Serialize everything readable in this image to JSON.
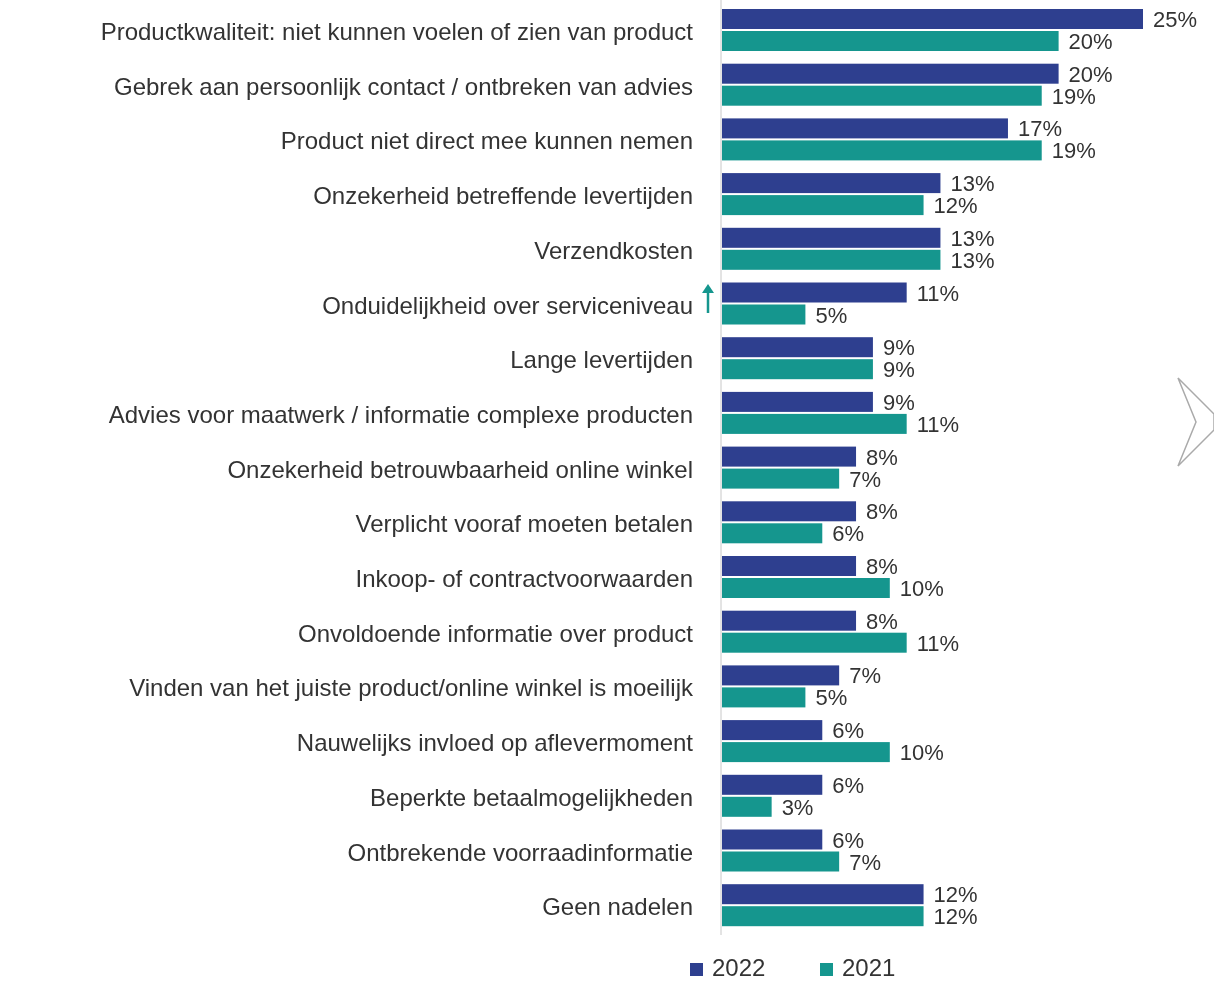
{
  "chart_data": {
    "type": "bar",
    "orientation": "horizontal",
    "legend": "bottom",
    "categories": [
      "Productkwaliteit: niet kunnen voelen of zien van product",
      "Gebrek aan persoonlijk contact / ontbreken van advies",
      "Product niet direct mee kunnen nemen",
      "Onzekerheid betreffende levertijden",
      "Verzendkosten",
      "Onduidelijkheid over serviceniveau",
      "Lange levertijden",
      "Advies voor maatwerk / informatie complexe producten",
      "Onzekerheid betrouwbaarheid online winkel",
      "Verplicht vooraf moeten betalen",
      "Inkoop- of contractvoorwaarden",
      "Onvoldoende informatie over product",
      "Vinden van het juiste product/online winkel is moeilijk",
      "Nauwelijks invloed op aflevermoment",
      "Beperkte betaalmogelijkheden",
      "Ontbrekende voorraadinformatie",
      "Geen nadelen"
    ],
    "series": [
      {
        "name": "2022",
        "color": "#2e3f8f",
        "values": [
          25,
          20,
          17,
          13,
          13,
          11,
          9,
          9,
          8,
          8,
          8,
          8,
          7,
          6,
          6,
          6,
          12
        ],
        "value_labels": [
          "25%",
          "20%",
          "17%",
          "13%",
          "13%",
          "11%",
          "9%",
          "9%",
          "8%",
          "8%",
          "8%",
          "8%",
          "7%",
          "6%",
          "6%",
          "6%",
          "12%"
        ]
      },
      {
        "name": "2021",
        "color": "#15968e",
        "values": [
          20,
          19,
          19,
          12,
          13,
          5,
          9,
          11,
          7,
          6,
          10,
          11,
          5,
          10,
          3,
          7,
          12
        ],
        "value_labels": [
          "20%",
          "19%",
          "19%",
          "12%",
          "13%",
          "5%",
          "9%",
          "11%",
          "7%",
          "6%",
          "10%",
          "11%",
          "5%",
          "10%",
          "3%",
          "7%",
          "12%"
        ]
      }
    ]
  }
}
